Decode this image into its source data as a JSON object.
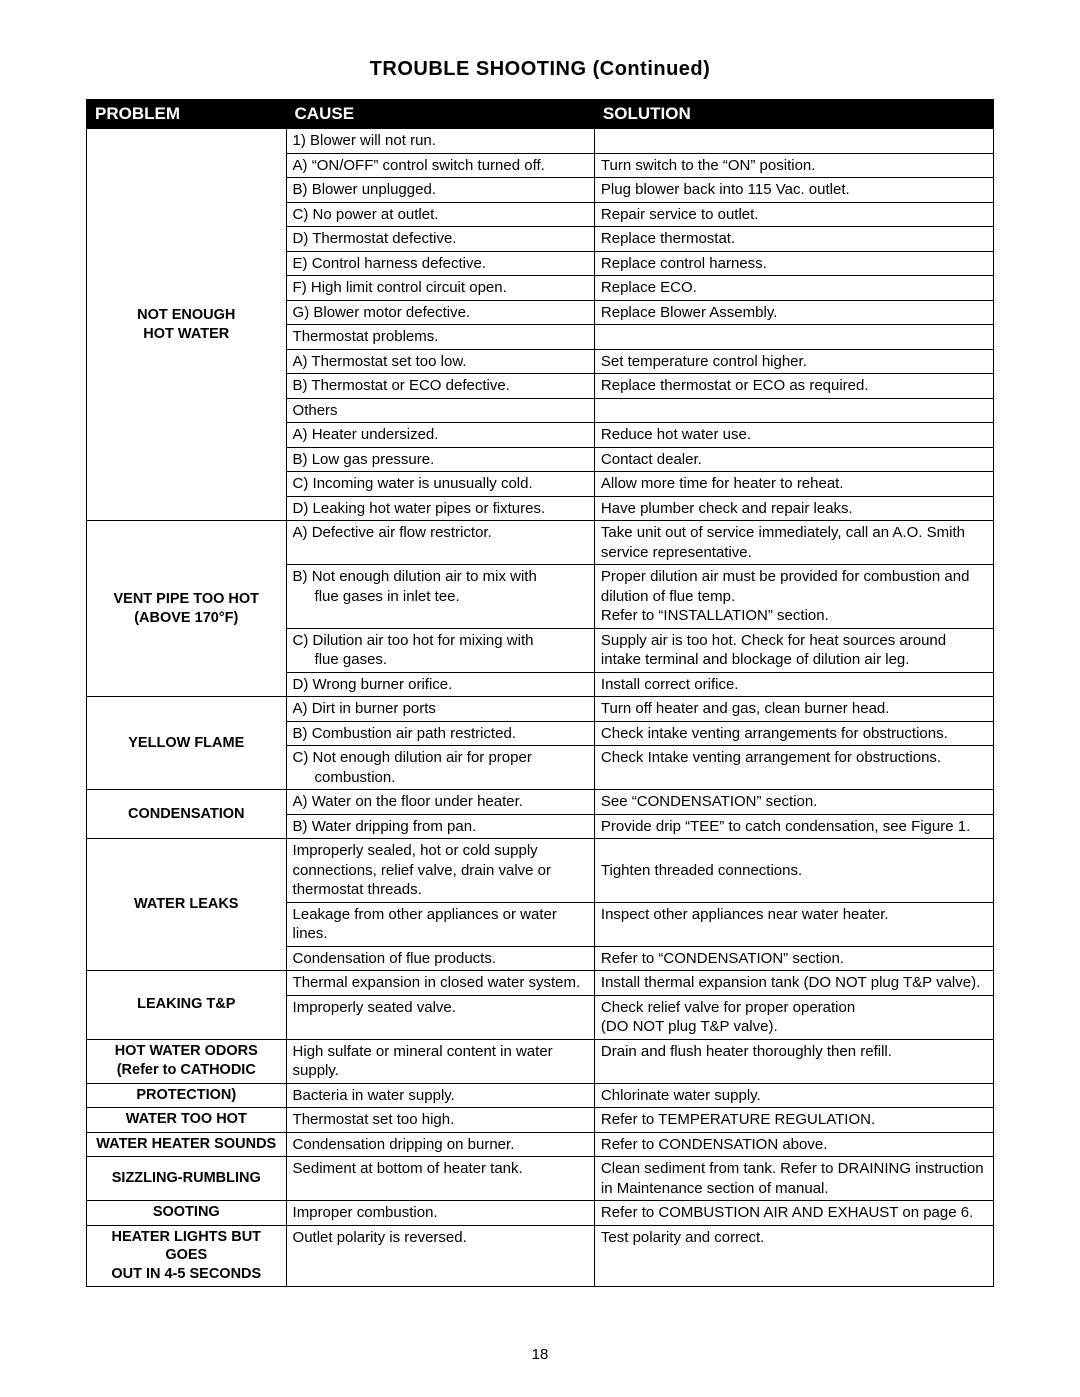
{
  "title": "TROUBLE SHOOTING (Continued)",
  "page_number": "18",
  "columns": {
    "problem": "PROBLEM",
    "cause": "CAUSE",
    "solution": "SOLUTION"
  },
  "sections": [
    {
      "problem": "NOT ENOUGH\nHOT WATER",
      "rows": [
        {
          "cause": "1) Blower will not run.",
          "solution": ""
        },
        {
          "cause": "A) “ON/OFF” control switch turned off.",
          "solution": "Turn switch to the “ON” position."
        },
        {
          "cause": "B) Blower unplugged.",
          "solution": "Plug blower back into 115 Vac. outlet."
        },
        {
          "cause": "C) No power at outlet.",
          "solution": "Repair service to outlet."
        },
        {
          "cause": "D) Thermostat defective.",
          "solution": "Replace thermostat."
        },
        {
          "cause": "E) Control harness defective.",
          "solution": "Replace control harness."
        },
        {
          "cause": "F) High limit control circuit open.",
          "solution": "Replace ECO."
        },
        {
          "cause": "G) Blower motor defective.",
          "solution": "Replace Blower Assembly."
        },
        {
          "cause": "Thermostat problems.",
          "solution": ""
        },
        {
          "cause": "A) Thermostat set too low.",
          "solution": "Set temperature control higher."
        },
        {
          "cause": "B) Thermostat or ECO defective.",
          "solution": "Replace thermostat  or ECO as required."
        },
        {
          "cause": "Others",
          "solution": ""
        },
        {
          "cause": "A) Heater undersized.",
          "solution": "Reduce hot water use."
        },
        {
          "cause": "B) Low gas pressure.",
          "solution": "Contact dealer."
        },
        {
          "cause": "C) Incoming water is unusually cold.",
          "solution": "Allow more time for heater to reheat."
        },
        {
          "cause": "D) Leaking hot water pipes or fixtures.",
          "solution": "Have plumber check and repair leaks."
        }
      ]
    },
    {
      "problem": "VENT PIPE TOO HOT\n(ABOVE 170°F)",
      "rows": [
        {
          "cause": "A) Defective air flow restrictor.",
          "solution": "Take unit out of service immediately, call an A.O. Smith service representative."
        },
        {
          "cause": "B) Not enough dilution air to mix with",
          "cause_indent": "flue gases in inlet tee.",
          "solution": "Proper dilution air must be provided for combustion and dilution of flue temp.\nRefer to “INSTALLATION” section."
        },
        {
          "cause": "C) Dilution air too hot for mixing with",
          "cause_indent": "flue gases.",
          "solution": "Supply air is too hot.  Check for heat sources around intake terminal and blockage of dilution air leg."
        },
        {
          "cause": "D) Wrong burner orifice.",
          "solution": "Install correct orifice."
        }
      ]
    },
    {
      "problem": "YELLOW FLAME",
      "rows": [
        {
          "cause": "A) Dirt in burner ports",
          "solution": "Turn off heater and gas, clean burner head."
        },
        {
          "cause": "B) Combustion air path restricted.",
          "solution": "Check intake venting arrangements for obstructions."
        },
        {
          "cause": "C) Not enough dilution air for proper",
          "cause_indent": "combustion.",
          "solution": "Check Intake venting arrangement for obstructions."
        }
      ]
    },
    {
      "problem": "CONDENSATION",
      "rows": [
        {
          "cause": "A) Water on the floor under heater.",
          "solution": "See “CONDENSATION” section."
        },
        {
          "cause": "B) Water dripping from pan.",
          "solution": "Provide drip “TEE” to catch condensation, see Figure 1."
        }
      ]
    },
    {
      "problem": "WATER LEAKS",
      "rows": [
        {
          "cause": "Improperly sealed, hot or cold supply connections, relief valve, drain valve or thermostat threads.",
          "solution": "\nTighten threaded connections."
        },
        {
          "cause": "Leakage from other appliances or water lines.",
          "solution": "Inspect other appliances near water heater."
        },
        {
          "cause": "Condensation of flue products.",
          "solution": "Refer to “CONDENSATION” section."
        }
      ]
    },
    {
      "problem": "LEAKING T&P",
      "rows": [
        {
          "cause": "Thermal expansion in closed water system.",
          "solution": "Install thermal expansion tank (DO NOT plug T&P valve)."
        },
        {
          "cause": "Improperly seated valve.",
          "solution": "Check relief valve for proper operation\n(DO NOT plug T&P valve)."
        }
      ]
    },
    {
      "problem": "HOT WATER ODORS\n(Refer to CATHODIC",
      "rows": [
        {
          "cause": "High sulfate or mineral content in water supply.",
          "solution": "Drain and flush heater thoroughly then refill."
        }
      ]
    },
    {
      "problem": "PROTECTION)",
      "rows": [
        {
          "cause": "Bacteria in water supply.",
          "solution": "Chlorinate water supply."
        }
      ]
    },
    {
      "problem": "WATER TOO HOT",
      "rows": [
        {
          "cause": "Thermostat set too high.",
          "solution": "Refer to TEMPERATURE REGULATION."
        }
      ]
    },
    {
      "problem": "WATER HEATER SOUNDS",
      "rows": [
        {
          "cause": "Condensation dripping on burner.",
          "solution": "Refer to CONDENSATION above."
        }
      ]
    },
    {
      "problem": "SIZZLING-RUMBLING",
      "rows": [
        {
          "cause": "Sediment at bottom of heater tank.",
          "solution": "Clean sediment from tank.  Refer to DRAINING instruction in Maintenance section of manual."
        }
      ]
    },
    {
      "problem": "SOOTING",
      "rows": [
        {
          "cause": "Improper combustion.",
          "solution": "Refer to COMBUSTION AIR AND EXHAUST on page 6."
        }
      ]
    },
    {
      "problem": "HEATER LIGHTS BUT GOES\nOUT IN 4-5 SECONDS",
      "rows": [
        {
          "cause": "Outlet polarity is reversed.",
          "solution": "Test polarity and correct."
        }
      ]
    }
  ]
}
